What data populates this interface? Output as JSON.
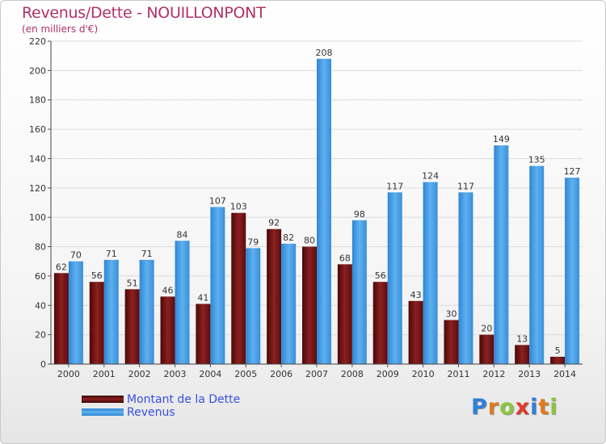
{
  "header": {
    "title": "Revenus/Dette - NOUILLONPONT",
    "subtitle": "(en milliers d'€)"
  },
  "chart_data": {
    "type": "bar",
    "title": "Revenus/Dette - NOUILLONPONT",
    "subtitle": "(en milliers d'€)",
    "categories": [
      "2000",
      "2001",
      "2002",
      "2003",
      "2004",
      "2005",
      "2006",
      "2007",
      "2008",
      "2009",
      "2010",
      "2011",
      "2012",
      "2013",
      "2014"
    ],
    "series": [
      {
        "name": "Montant de la Dette",
        "color": "#7a1515",
        "values": [
          62,
          56,
          51,
          46,
          41,
          103,
          92,
          80,
          68,
          56,
          43,
          30,
          20,
          13,
          5
        ]
      },
      {
        "name": "Revenus",
        "color": "#4ea2e6",
        "values": [
          70,
          71,
          71,
          84,
          107,
          79,
          82,
          208,
          98,
          117,
          124,
          117,
          149,
          135,
          127
        ]
      }
    ],
    "yticks": [
      0,
      20,
      40,
      60,
      80,
      100,
      120,
      140,
      160,
      180,
      200,
      220
    ],
    "ylim": [
      0,
      220
    ],
    "grid": true,
    "legend_position": "bottom-left"
  },
  "legend": {
    "items": [
      {
        "label": "Montant de la Dette",
        "color": "#7a1515"
      },
      {
        "label": "Revenus",
        "color": "#4ea2e6"
      }
    ]
  },
  "logo": {
    "letters": [
      {
        "ch": "P",
        "color": "#2f7fd8"
      },
      {
        "ch": "r",
        "color": "#e07a1c"
      },
      {
        "ch": "o",
        "color": "#8cc63e"
      },
      {
        "ch": "x",
        "color": "#e03a2a"
      },
      {
        "ch": "i",
        "color": "#2f7fd8"
      },
      {
        "ch": "t",
        "color": "#e07a1c"
      },
      {
        "ch": "i",
        "color": "#8cc63e"
      }
    ]
  }
}
